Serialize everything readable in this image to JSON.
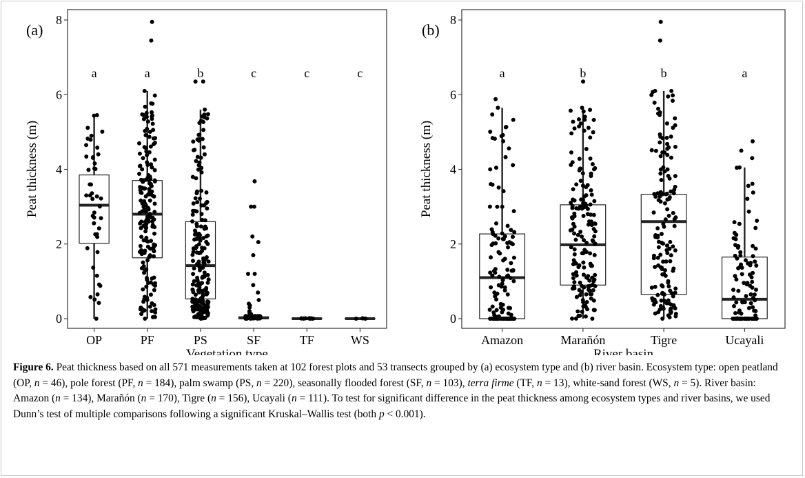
{
  "chart_data": [
    {
      "type": "box",
      "panel_label": "(a)",
      "xlabel": "Vegetation type",
      "ylabel": "Peat thickness (m)",
      "ylim": [
        0,
        8
      ],
      "yticks": [
        "0",
        "2",
        "4",
        "6",
        "8"
      ],
      "grid": false,
      "categories": [
        "OP",
        "PF",
        "PS",
        "SF",
        "TF",
        "WS"
      ],
      "letters": [
        "a",
        "a",
        "b",
        "c",
        "c",
        "c"
      ],
      "boxes": [
        {
          "q1": 2.02,
          "median": 3.04,
          "q3": 3.85,
          "whisker_low": 0.0,
          "whisker_high": 5.45
        },
        {
          "q1": 1.63,
          "median": 2.8,
          "q3": 3.7,
          "whisker_low": 0.0,
          "whisker_high": 6.1
        },
        {
          "q1": 0.53,
          "median": 1.42,
          "q3": 2.6,
          "whisker_low": 0.0,
          "whisker_high": 5.6
        },
        {
          "q1": 0.0,
          "median": 0.02,
          "q3": 0.05,
          "whisker_low": 0.0,
          "whisker_high": 0.07
        },
        {
          "q1": 0.0,
          "median": 0.0,
          "q3": 0.01,
          "whisker_low": 0.0,
          "whisker_high": 0.01
        },
        {
          "q1": 0.0,
          "median": 0.0,
          "q3": 0.01,
          "whisker_low": 0.0,
          "whisker_high": 0.01
        }
      ],
      "outliers": [
        [],
        [
          7.95,
          7.45
        ],
        [
          6.35,
          6.35
        ],
        [
          3.68,
          3.0,
          3.0,
          2.2,
          2.05,
          1.7,
          1.2,
          1.2,
          0.9,
          0.7,
          0.5,
          0.4,
          0.35,
          0.3,
          0.2,
          0.15,
          0.12
        ],
        [],
        []
      ],
      "n": [
        46,
        184,
        220,
        103,
        13,
        5
      ]
    },
    {
      "type": "box",
      "panel_label": "(b)",
      "xlabel": "River basin",
      "ylabel": "Peat thickness (m)",
      "ylim": [
        0,
        8
      ],
      "yticks": [
        "0",
        "2",
        "4",
        "6",
        "8"
      ],
      "grid": false,
      "categories": [
        "Amazon",
        "Marañón",
        "Tigre",
        "Ucayali"
      ],
      "letters": [
        "a",
        "b",
        "b",
        "a"
      ],
      "boxes": [
        {
          "q1": 0.0,
          "median": 1.1,
          "q3": 2.27,
          "whisker_low": 0.0,
          "whisker_high": 5.65
        },
        {
          "q1": 0.9,
          "median": 1.98,
          "q3": 3.05,
          "whisker_low": 0.0,
          "whisker_high": 5.65
        },
        {
          "q1": 0.65,
          "median": 2.6,
          "q3": 3.33,
          "whisker_low": 0.0,
          "whisker_high": 6.1
        },
        {
          "q1": 0.0,
          "median": 0.52,
          "q3": 1.65,
          "whisker_low": 0.0,
          "whisker_high": 4.05
        }
      ],
      "outliers": [
        [
          5.88
        ],
        [
          6.35
        ],
        [
          7.95,
          7.45
        ],
        [
          4.75,
          4.5,
          4.3
        ]
      ],
      "n": [
        134,
        170,
        156,
        111
      ]
    }
  ],
  "caption": {
    "label": "Figure 6.",
    "segments": [
      {
        "text": " Peat thickness based on all 571 measurements taken at 102 forest plots and 53 transects grouped by (a) ecosystem type and (b) river basin. Ecosystem type: open peatland (OP, ",
        "italic": false
      },
      {
        "text": "n",
        "italic": true
      },
      {
        "text": " = 46), pole forest (PF, ",
        "italic": false
      },
      {
        "text": "n",
        "italic": true
      },
      {
        "text": " = 184), palm swamp (PS, ",
        "italic": false
      },
      {
        "text": "n",
        "italic": true
      },
      {
        "text": " = 220), seasonally flooded forest (SF, ",
        "italic": false
      },
      {
        "text": "n",
        "italic": true
      },
      {
        "text": " = 103), ",
        "italic": false
      },
      {
        "text": "terra firme",
        "italic": true
      },
      {
        "text": " (TF, ",
        "italic": false
      },
      {
        "text": "n",
        "italic": true
      },
      {
        "text": " = 13), white-sand forest (WS, ",
        "italic": false
      },
      {
        "text": "n",
        "italic": true
      },
      {
        "text": " = 5). River basin: Amazon (",
        "italic": false
      },
      {
        "text": "n",
        "italic": true
      },
      {
        "text": " = 134), Marañón (",
        "italic": false
      },
      {
        "text": "n",
        "italic": true
      },
      {
        "text": " = 170), Tigre (",
        "italic": false
      },
      {
        "text": "n",
        "italic": true
      },
      {
        "text": " = 156), Ucayali (",
        "italic": false
      },
      {
        "text": "n",
        "italic": true
      },
      {
        "text": " = 111). To test for significant difference in the peat thickness among ecosystem types and river basins, we used Dunn’s test of multiple comparisons following a significant Kruskal–Wallis test (both ",
        "italic": false
      },
      {
        "text": "p",
        "italic": true
      },
      {
        "text": " < 0.001).",
        "italic": false
      }
    ]
  }
}
